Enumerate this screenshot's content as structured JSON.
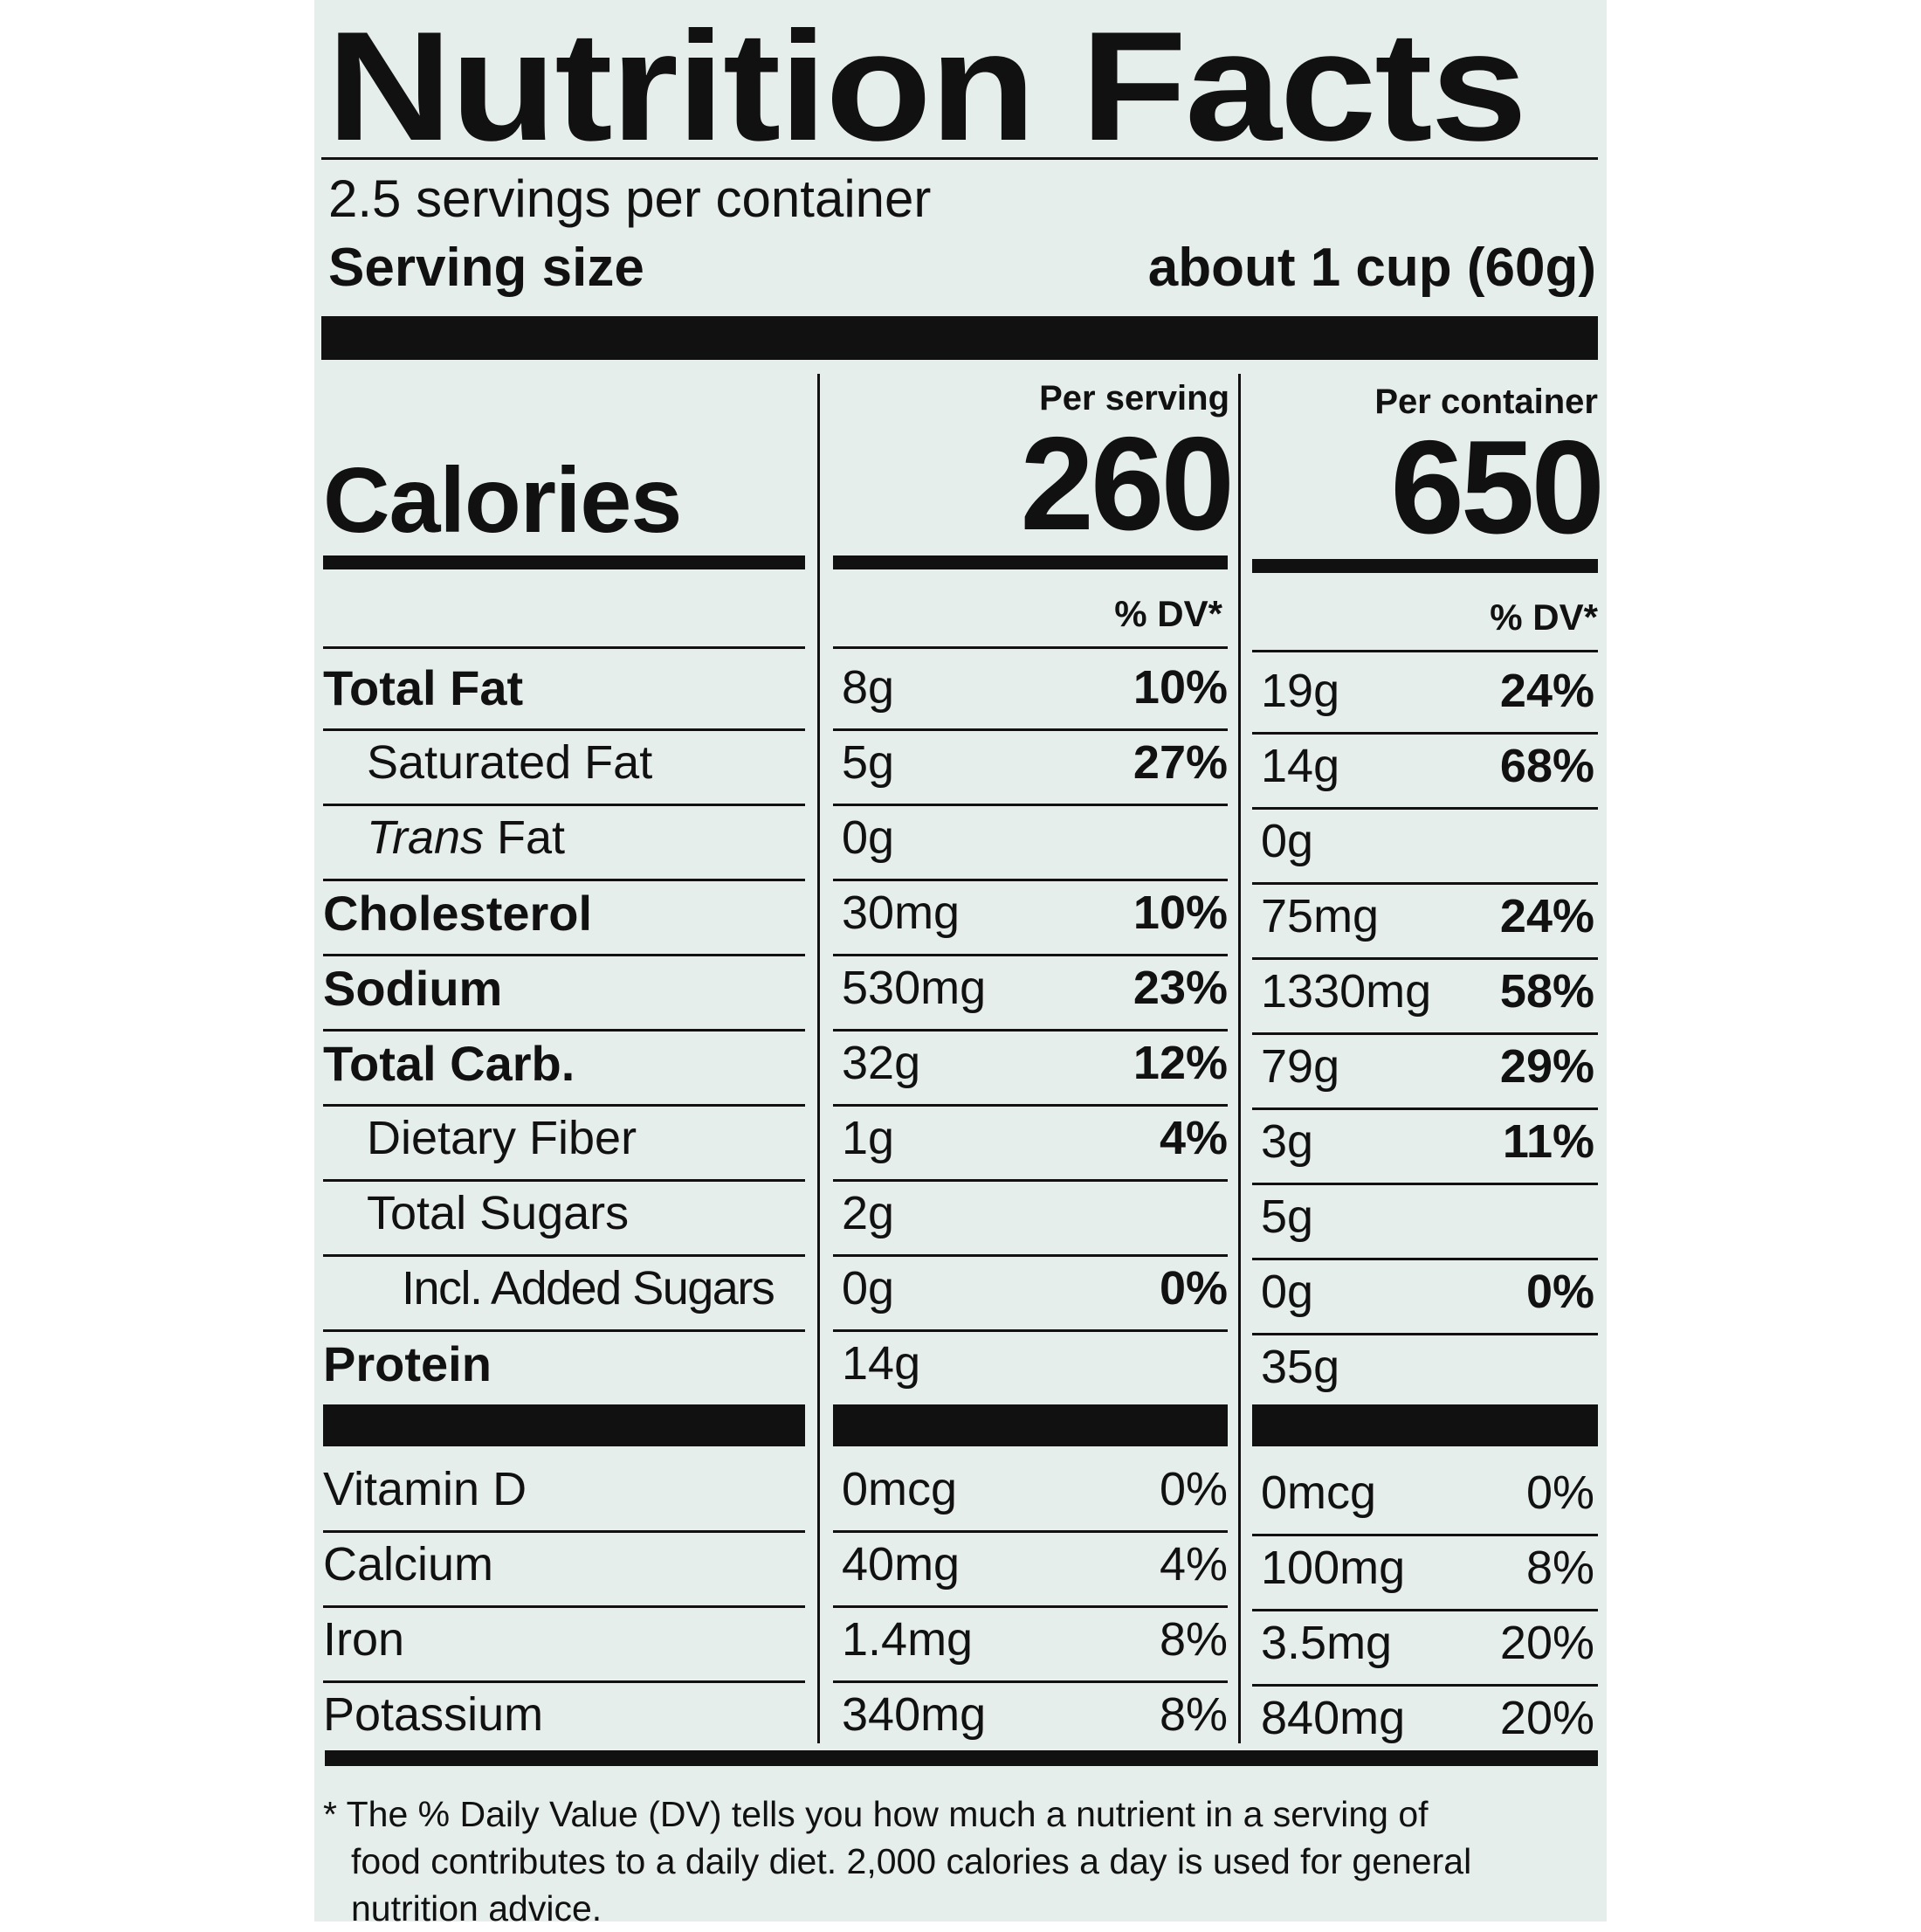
{
  "label": {
    "title": "Nutrition Facts",
    "servings_per_container": "2.5 servings per container",
    "serving_size_label": "Serving size",
    "serving_size_value": "about 1 cup (60g)",
    "per_serving_label": "Per serving",
    "per_container_label": "Per container",
    "calories_label": "Calories",
    "calories_per_serving": "260",
    "calories_per_container": "650",
    "dv_header": "% DV*",
    "nutrients": [
      {
        "name": "Total Fat",
        "serving_amount": "8g",
        "serving_dv": "10%",
        "container_amount": "19g",
        "container_dv": "24%"
      },
      {
        "name": "Saturated Fat",
        "serving_amount": "5g",
        "serving_dv": "27%",
        "container_amount": "14g",
        "container_dv": "68%"
      },
      {
        "name_italic": "Trans",
        "name": " Fat",
        "serving_amount": "0g",
        "serving_dv": "",
        "container_amount": "0g",
        "container_dv": ""
      },
      {
        "name": "Cholesterol",
        "serving_amount": "30mg",
        "serving_dv": "10%",
        "container_amount": "75mg",
        "container_dv": "24%"
      },
      {
        "name": "Sodium",
        "serving_amount": "530mg",
        "serving_dv": "23%",
        "container_amount": "1330mg",
        "container_dv": "58%"
      },
      {
        "name": "Total Carb.",
        "serving_amount": "32g",
        "serving_dv": "12%",
        "container_amount": "79g",
        "container_dv": "29%"
      },
      {
        "name": "Dietary Fiber",
        "serving_amount": "1g",
        "serving_dv": "4%",
        "container_amount": "3g",
        "container_dv": "11%"
      },
      {
        "name": "Total Sugars",
        "serving_amount": "2g",
        "serving_dv": "",
        "container_amount": "5g",
        "container_dv": ""
      },
      {
        "name": "Incl. Added Sugars",
        "serving_amount": "0g",
        "serving_dv": "0%",
        "container_amount": "0g",
        "container_dv": "0%"
      },
      {
        "name": "Protein",
        "serving_amount": "14g",
        "serving_dv": "",
        "container_amount": "35g",
        "container_dv": ""
      }
    ],
    "vitamins": [
      {
        "name": "Vitamin D",
        "serving_amount": "0mcg",
        "serving_dv": "0%",
        "container_amount": "0mcg",
        "container_dv": "0%"
      },
      {
        "name": "Calcium",
        "serving_amount": "40mg",
        "serving_dv": "4%",
        "container_amount": "100mg",
        "container_dv": "8%"
      },
      {
        "name": "Iron",
        "serving_amount": "1.4mg",
        "serving_dv": "8%",
        "container_amount": "3.5mg",
        "container_dv": "20%"
      },
      {
        "name": "Potassium",
        "serving_amount": "340mg",
        "serving_dv": "8%",
        "container_amount": "840mg",
        "container_dv": "20%"
      }
    ],
    "footnote_line1": "* The % Daily Value (DV) tells you how much a nutrient in a serving of",
    "footnote_line2": "food contributes to a daily diet. 2,000 calories a day is used for general",
    "footnote_line3": "nutrition advice."
  }
}
